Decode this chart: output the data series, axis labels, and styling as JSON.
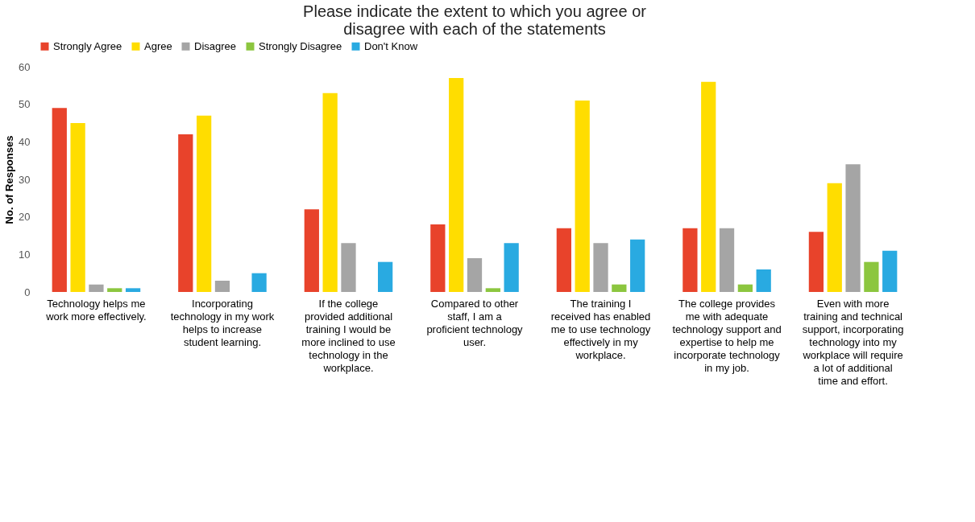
{
  "chart_data": {
    "type": "bar",
    "title": "Please indicate the extent to which you agree or disagree with each of the statements",
    "ylabel": "No. of Responses",
    "categories": [
      "Technology helps me work more effectively.",
      "Incorporating technology in my work helps to increase student learning.",
      "If the college provided additional training I would be more inclined to use technology in the workplace.",
      "Compared to other staff, I am a proficient technology user.",
      "The training I received has enabled me to use technology effectively in my workplace.",
      "The college provides me with adequate technology support and expertise to help me incorporate technology in my job.",
      "Even with more training and technical support, incorporating technology into my workplace will require a lot of additional time and effort."
    ],
    "series": [
      {
        "name": "Strongly Agree",
        "color": "#e8432b",
        "values": [
          49,
          42,
          22,
          18,
          17,
          17,
          16
        ]
      },
      {
        "name": "Agree",
        "color": "#ffdd00",
        "values": [
          45,
          47,
          53,
          57,
          51,
          56,
          29
        ]
      },
      {
        "name": "Disagree",
        "color": "#a5a5a5",
        "values": [
          2,
          3,
          13,
          9,
          13,
          17,
          34
        ]
      },
      {
        "name": "Strongly Disagree",
        "color": "#8cc63f",
        "values": [
          1,
          0,
          0,
          1,
          2,
          2,
          8
        ]
      },
      {
        "name": "Don't Know",
        "color": "#29aae1",
        "values": [
          1,
          5,
          8,
          13,
          14,
          6,
          11
        ]
      }
    ],
    "ylim": [
      0,
      60
    ],
    "yticks": [
      0,
      10,
      20,
      30,
      40,
      50,
      60
    ],
    "grid": false,
    "legend": "top"
  }
}
